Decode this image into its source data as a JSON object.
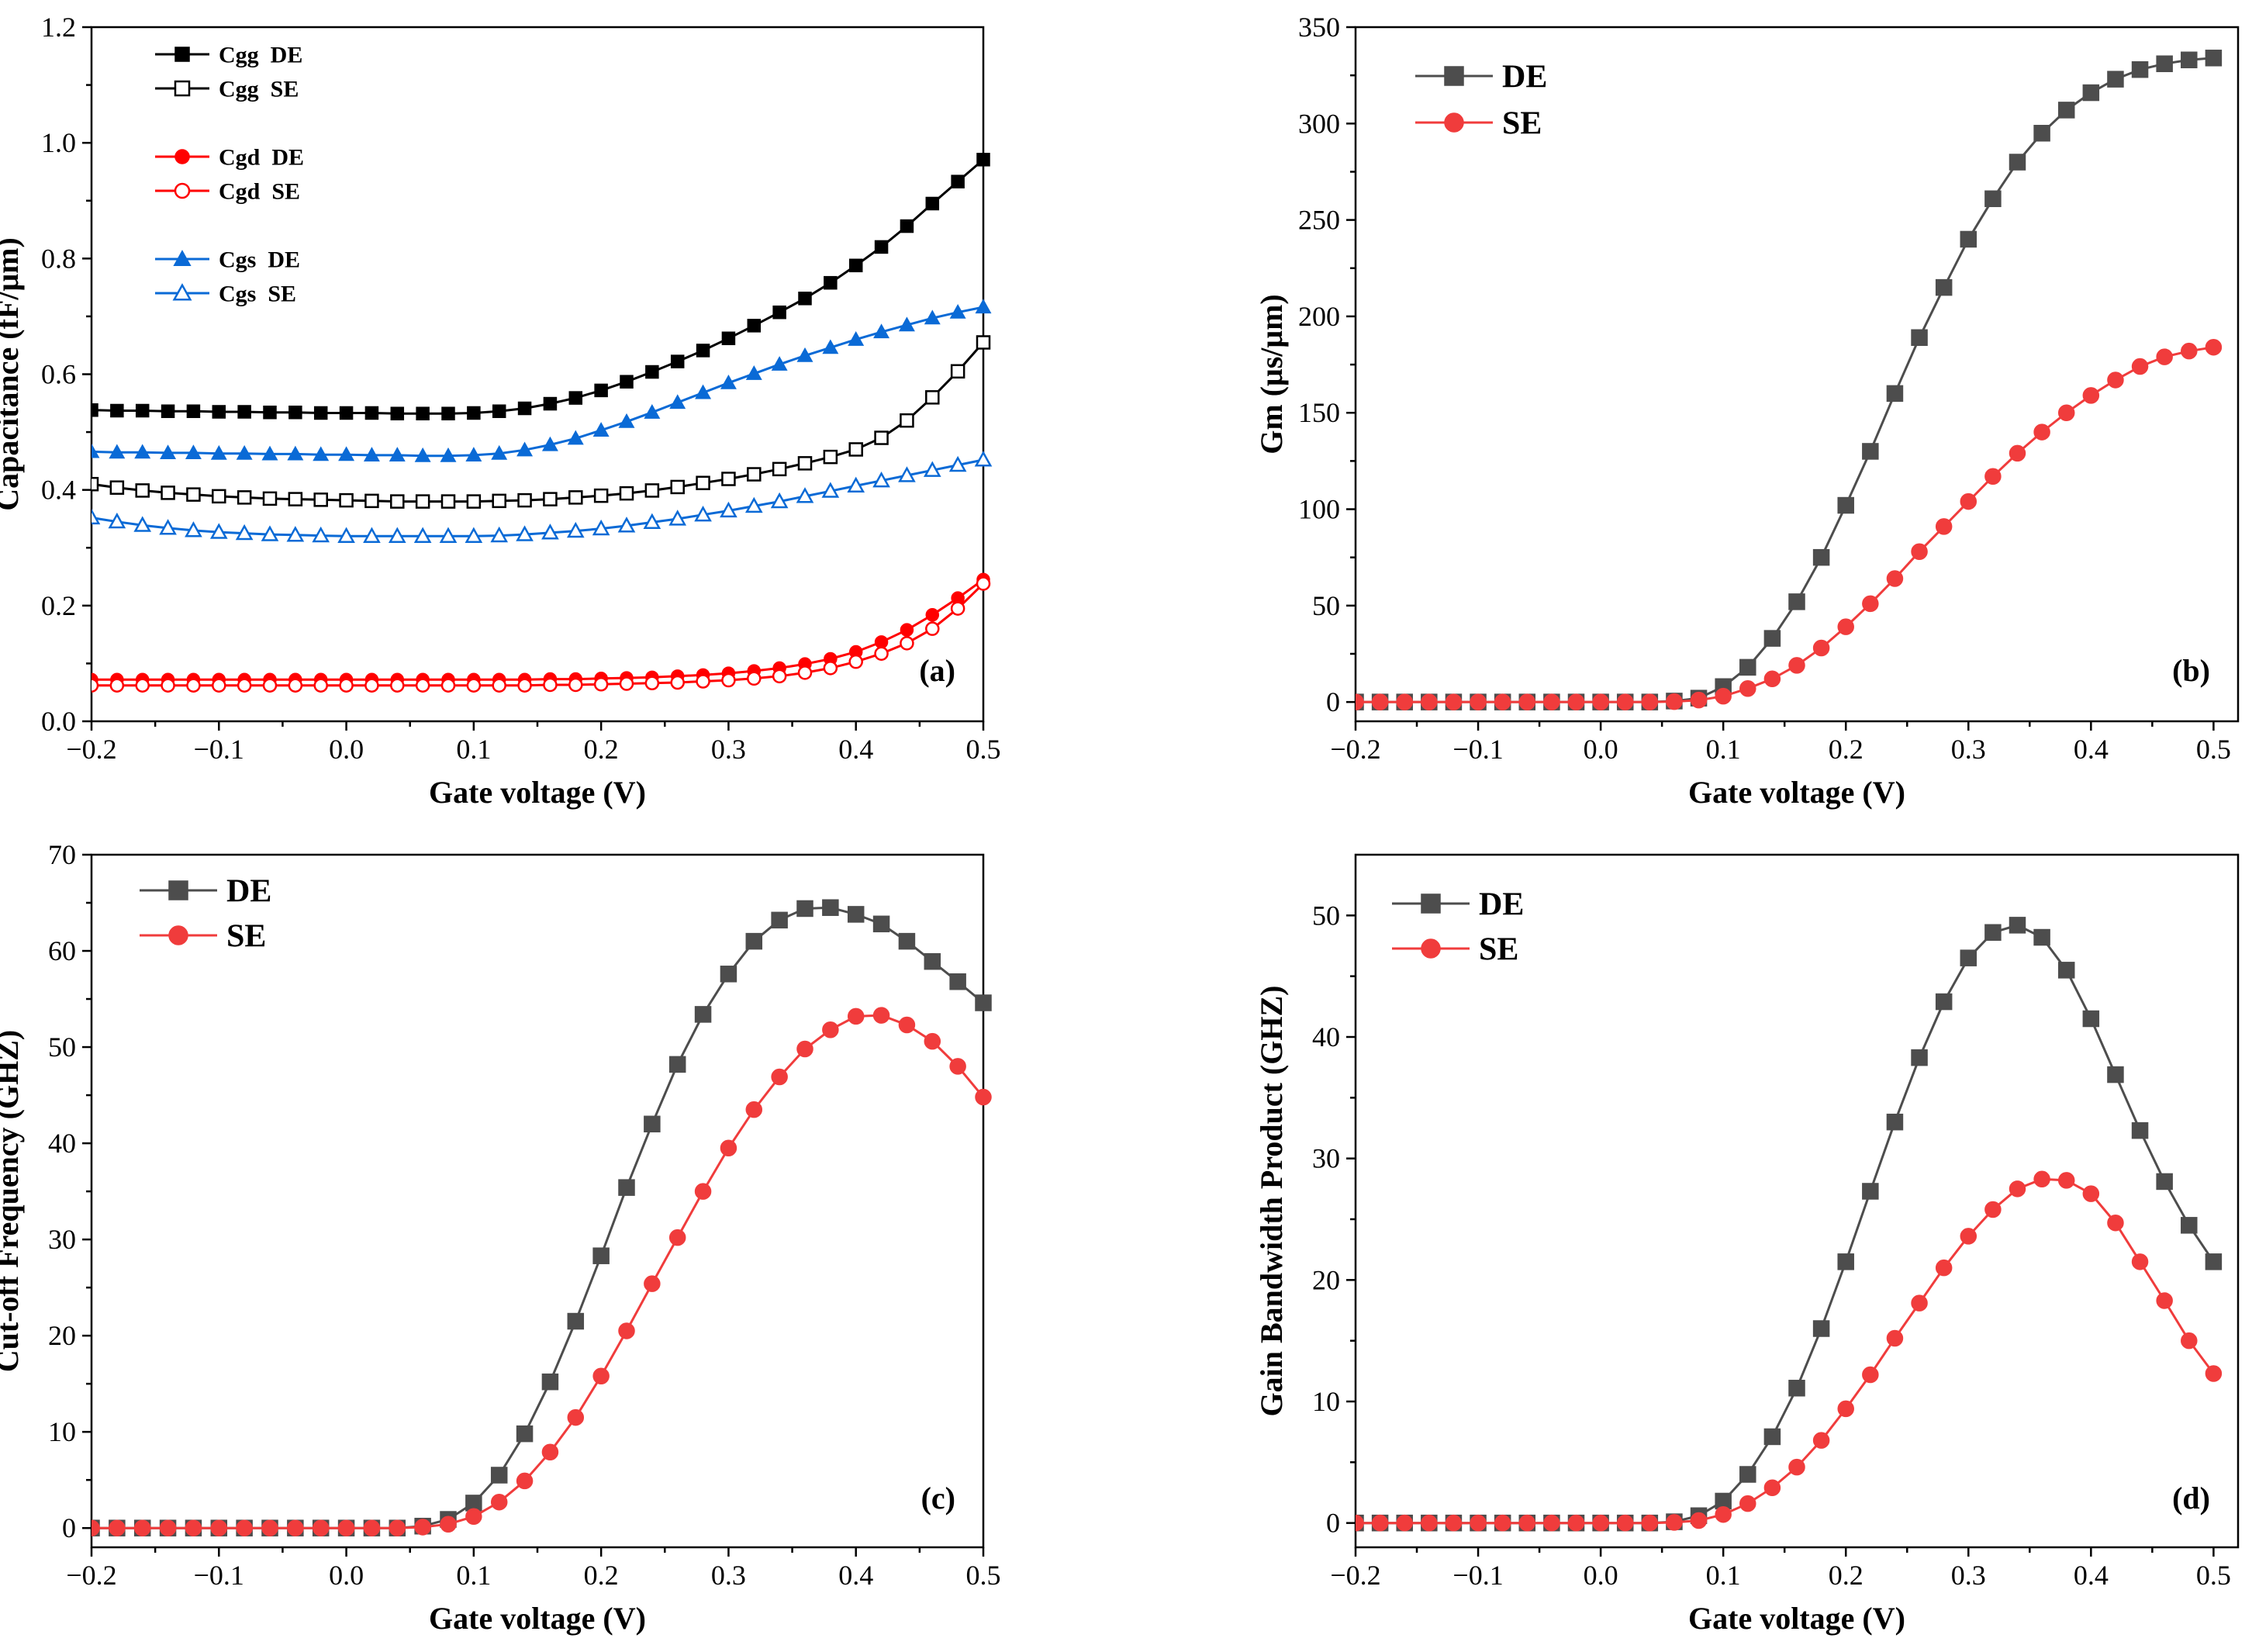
{
  "figure": {
    "panels": 4
  },
  "chart_data": [
    {
      "id": "a",
      "type": "line",
      "panel_label": "(a)",
      "xlabel": "Gate voltage (V)",
      "ylabel": "Capacitance (fF/μm)",
      "xlim": [
        -0.2,
        0.5
      ],
      "ylim": [
        0.0,
        1.2
      ],
      "xticks": [
        -0.2,
        -0.1,
        0.0,
        0.1,
        0.2,
        0.3,
        0.4,
        0.5
      ],
      "xtick_labels": [
        "−0.2",
        "−0.1",
        "0.0",
        "0.1",
        "0.2",
        "0.3",
        "0.4",
        "0.5"
      ],
      "yticks": [
        0.0,
        0.2,
        0.4,
        0.6,
        0.8,
        1.0,
        1.2
      ],
      "ytick_labels": [
        "0.0",
        "0.2",
        "0.4",
        "0.6",
        "0.8",
        "1.0",
        "1.2"
      ],
      "legend_position": "top-left",
      "x": [
        -0.2,
        -0.18,
        -0.16,
        -0.14,
        -0.12,
        -0.1,
        -0.08,
        -0.06,
        -0.04,
        -0.02,
        0.0,
        0.02,
        0.04,
        0.06,
        0.08,
        0.1,
        0.12,
        0.14,
        0.16,
        0.18,
        0.2,
        0.22,
        0.24,
        0.26,
        0.28,
        0.3,
        0.32,
        0.34,
        0.36,
        0.38,
        0.4,
        0.42,
        0.44,
        0.46,
        0.48,
        0.5
      ],
      "series": [
        {
          "name": "Cgg  DE",
          "color": "#000000",
          "marker": "square",
          "filled": true,
          "legend_gap": false,
          "values": [
            0.538,
            0.537,
            0.537,
            0.536,
            0.536,
            0.535,
            0.535,
            0.534,
            0.534,
            0.533,
            0.533,
            0.533,
            0.532,
            0.532,
            0.532,
            0.533,
            0.536,
            0.541,
            0.549,
            0.559,
            0.572,
            0.587,
            0.604,
            0.622,
            0.641,
            0.662,
            0.684,
            0.707,
            0.731,
            0.758,
            0.788,
            0.82,
            0.856,
            0.895,
            0.933,
            0.971
          ]
        },
        {
          "name": "Cgg  SE",
          "color": "#000000",
          "marker": "square",
          "filled": false,
          "legend_gap": false,
          "values": [
            0.41,
            0.404,
            0.399,
            0.395,
            0.392,
            0.389,
            0.387,
            0.385,
            0.384,
            0.383,
            0.382,
            0.381,
            0.38,
            0.38,
            0.38,
            0.38,
            0.381,
            0.382,
            0.384,
            0.387,
            0.39,
            0.394,
            0.399,
            0.405,
            0.412,
            0.419,
            0.427,
            0.436,
            0.446,
            0.457,
            0.47,
            0.49,
            0.52,
            0.56,
            0.605,
            0.655
          ]
        },
        {
          "name": "Cgd  DE",
          "color": "#ff0000",
          "marker": "circle",
          "filled": true,
          "legend_gap": true,
          "values": [
            0.072,
            0.072,
            0.072,
            0.072,
            0.072,
            0.072,
            0.072,
            0.072,
            0.072,
            0.072,
            0.072,
            0.072,
            0.072,
            0.072,
            0.072,
            0.072,
            0.072,
            0.072,
            0.073,
            0.073,
            0.074,
            0.075,
            0.076,
            0.078,
            0.08,
            0.083,
            0.087,
            0.092,
            0.099,
            0.108,
            0.12,
            0.137,
            0.158,
            0.184,
            0.213,
            0.245
          ]
        },
        {
          "name": "Cgd  SE",
          "color": "#ff0000",
          "marker": "circle",
          "filled": false,
          "legend_gap": false,
          "values": [
            0.062,
            0.062,
            0.062,
            0.062,
            0.062,
            0.062,
            0.062,
            0.062,
            0.062,
            0.062,
            0.062,
            0.062,
            0.062,
            0.062,
            0.062,
            0.062,
            0.062,
            0.062,
            0.063,
            0.063,
            0.064,
            0.065,
            0.066,
            0.067,
            0.069,
            0.071,
            0.074,
            0.078,
            0.084,
            0.092,
            0.103,
            0.117,
            0.135,
            0.16,
            0.195,
            0.238
          ]
        },
        {
          "name": "Cgs  DE",
          "color": "#0a6ad6",
          "marker": "triangle",
          "filled": true,
          "legend_gap": true,
          "values": [
            0.466,
            0.465,
            0.465,
            0.464,
            0.464,
            0.463,
            0.463,
            0.462,
            0.462,
            0.461,
            0.461,
            0.46,
            0.46,
            0.459,
            0.459,
            0.46,
            0.463,
            0.469,
            0.478,
            0.489,
            0.503,
            0.518,
            0.534,
            0.551,
            0.568,
            0.585,
            0.601,
            0.617,
            0.632,
            0.646,
            0.66,
            0.673,
            0.685,
            0.697,
            0.707,
            0.716
          ]
        },
        {
          "name": "Cgs  SE",
          "color": "#0a6ad6",
          "marker": "triangle",
          "filled": false,
          "legend_gap": false,
          "values": [
            0.352,
            0.345,
            0.339,
            0.334,
            0.33,
            0.327,
            0.325,
            0.323,
            0.322,
            0.321,
            0.32,
            0.32,
            0.32,
            0.32,
            0.32,
            0.32,
            0.321,
            0.323,
            0.326,
            0.329,
            0.333,
            0.338,
            0.344,
            0.35,
            0.357,
            0.364,
            0.372,
            0.38,
            0.389,
            0.398,
            0.407,
            0.416,
            0.425,
            0.434,
            0.443,
            0.452
          ]
        }
      ]
    },
    {
      "id": "b",
      "type": "line",
      "panel_label": "(b)",
      "xlabel": "Gate voltage (V)",
      "ylabel": "Gm (μs/μm)",
      "xlim": [
        -0.2,
        0.52
      ],
      "ylim": [
        -10,
        350
      ],
      "xticks": [
        -0.2,
        -0.1,
        0.0,
        0.1,
        0.2,
        0.3,
        0.4,
        0.5
      ],
      "xtick_labels": [
        "−0.2",
        "−0.1",
        "0.0",
        "0.1",
        "0.2",
        "0.3",
        "0.4",
        "0.5"
      ],
      "yticks": [
        0,
        50,
        100,
        150,
        200,
        250,
        300,
        350
      ],
      "ytick_labels": [
        "0",
        "50",
        "100",
        "150",
        "200",
        "250",
        "300",
        "350"
      ],
      "legend_position": "top-left",
      "x": [
        -0.2,
        -0.18,
        -0.16,
        -0.14,
        -0.12,
        -0.1,
        -0.08,
        -0.06,
        -0.04,
        -0.02,
        0.0,
        0.02,
        0.04,
        0.06,
        0.08,
        0.1,
        0.12,
        0.14,
        0.16,
        0.18,
        0.2,
        0.22,
        0.24,
        0.26,
        0.28,
        0.3,
        0.32,
        0.34,
        0.36,
        0.38,
        0.4,
        0.42,
        0.44,
        0.46,
        0.48,
        0.5
      ],
      "series": [
        {
          "name": "DE",
          "color": "#4d4d4d",
          "marker": "square",
          "filled": true,
          "values": [
            0,
            0,
            0,
            0,
            0,
            0,
            0,
            0,
            0,
            0,
            0,
            0,
            0,
            0.5,
            2,
            8,
            18,
            33,
            52,
            75,
            102,
            130,
            160,
            189,
            215,
            240,
            261,
            280,
            295,
            307,
            316,
            323,
            328,
            331,
            333,
            334
          ]
        },
        {
          "name": "SE",
          "color": "#f03c3c",
          "marker": "circle",
          "filled": true,
          "values": [
            0,
            0,
            0,
            0,
            0,
            0,
            0,
            0,
            0,
            0,
            0,
            0,
            0,
            0.2,
            1,
            3,
            7,
            12,
            19,
            28,
            39,
            51,
            64,
            78,
            91,
            104,
            117,
            129,
            140,
            150,
            159,
            167,
            174,
            179,
            182,
            184
          ]
        }
      ]
    },
    {
      "id": "c",
      "type": "line",
      "panel_label": "(c)",
      "xlabel": "Gate voltage (V)",
      "ylabel": "Cut-off Frequency (GHZ)",
      "xlim": [
        -0.2,
        0.5
      ],
      "ylim": [
        -2,
        70
      ],
      "xticks": [
        -0.2,
        -0.1,
        0.0,
        0.1,
        0.2,
        0.3,
        0.4,
        0.5
      ],
      "xtick_labels": [
        "−0.2",
        "−0.1",
        "0.0",
        "0.1",
        "0.2",
        "0.3",
        "0.4",
        "0.5"
      ],
      "yticks": [
        0,
        10,
        20,
        30,
        40,
        50,
        60,
        70
      ],
      "ytick_labels": [
        "0",
        "10",
        "20",
        "30",
        "40",
        "50",
        "60",
        "70"
      ],
      "legend_position": "top-left",
      "x": [
        -0.2,
        -0.18,
        -0.16,
        -0.14,
        -0.12,
        -0.1,
        -0.08,
        -0.06,
        -0.04,
        -0.02,
        0.0,
        0.02,
        0.04,
        0.06,
        0.08,
        0.1,
        0.12,
        0.14,
        0.16,
        0.18,
        0.2,
        0.22,
        0.24,
        0.26,
        0.28,
        0.3,
        0.32,
        0.34,
        0.36,
        0.38,
        0.4,
        0.42,
        0.44,
        0.46,
        0.48,
        0.5
      ],
      "series": [
        {
          "name": "DE",
          "color": "#4d4d4d",
          "marker": "square",
          "filled": true,
          "values": [
            0,
            0,
            0,
            0,
            0,
            0,
            0,
            0,
            0,
            0,
            0,
            0,
            0,
            0.2,
            0.9,
            2.6,
            5.5,
            9.8,
            15.2,
            21.5,
            28.3,
            35.4,
            42,
            48.2,
            53.4,
            57.6,
            61,
            63.2,
            64.4,
            64.5,
            63.8,
            62.8,
            61,
            58.9,
            56.8,
            54.6
          ]
        },
        {
          "name": "SE",
          "color": "#f03c3c",
          "marker": "circle",
          "filled": true,
          "values": [
            0,
            0,
            0,
            0,
            0,
            0,
            0,
            0,
            0,
            0,
            0,
            0,
            0,
            0.1,
            0.4,
            1.2,
            2.7,
            4.9,
            7.9,
            11.5,
            15.8,
            20.5,
            25.4,
            30.2,
            35,
            39.5,
            43.5,
            46.9,
            49.8,
            51.8,
            53.2,
            53.3,
            52.3,
            50.6,
            48,
            44.8
          ]
        }
      ]
    },
    {
      "id": "d",
      "type": "line",
      "panel_label": "(d)",
      "xlabel": "Gate voltage (V)",
      "ylabel": "Gain Bandwidth Product (GHZ)",
      "xlim": [
        -0.2,
        0.52
      ],
      "ylim": [
        -2,
        55
      ],
      "xticks": [
        -0.2,
        -0.1,
        0.0,
        0.1,
        0.2,
        0.3,
        0.4,
        0.5
      ],
      "xtick_labels": [
        "−0.2",
        "−0.1",
        "0.0",
        "0.1",
        "0.2",
        "0.3",
        "0.4",
        "0.5"
      ],
      "yticks": [
        0,
        10,
        20,
        30,
        40,
        50
      ],
      "ytick_labels": [
        "0",
        "10",
        "20",
        "30",
        "40",
        "50"
      ],
      "legend_position": "top-left",
      "x": [
        -0.2,
        -0.18,
        -0.16,
        -0.14,
        -0.12,
        -0.1,
        -0.08,
        -0.06,
        -0.04,
        -0.02,
        0.0,
        0.02,
        0.04,
        0.06,
        0.08,
        0.1,
        0.12,
        0.14,
        0.16,
        0.18,
        0.2,
        0.22,
        0.24,
        0.26,
        0.28,
        0.3,
        0.32,
        0.34,
        0.36,
        0.38,
        0.4,
        0.42,
        0.44,
        0.46,
        0.48,
        0.5
      ],
      "series": [
        {
          "name": "DE",
          "color": "#4d4d4d",
          "marker": "square",
          "filled": true,
          "values": [
            0,
            0,
            0,
            0,
            0,
            0,
            0,
            0,
            0,
            0,
            0,
            0,
            0,
            0.1,
            0.6,
            1.8,
            4,
            7.1,
            11.1,
            16,
            21.5,
            27.3,
            33,
            38.3,
            42.9,
            46.5,
            48.6,
            49.2,
            48.2,
            45.5,
            41.5,
            36.9,
            32.3,
            28.1,
            24.5,
            21.5
          ]
        },
        {
          "name": "SE",
          "color": "#f03c3c",
          "marker": "circle",
          "filled": true,
          "values": [
            0,
            0,
            0,
            0,
            0,
            0,
            0,
            0,
            0,
            0,
            0,
            0,
            0,
            0.05,
            0.2,
            0.7,
            1.6,
            2.9,
            4.6,
            6.8,
            9.4,
            12.2,
            15.2,
            18.1,
            21,
            23.6,
            25.8,
            27.5,
            28.3,
            28.2,
            27.1,
            24.7,
            21.5,
            18.3,
            15,
            12.3
          ]
        }
      ]
    }
  ]
}
